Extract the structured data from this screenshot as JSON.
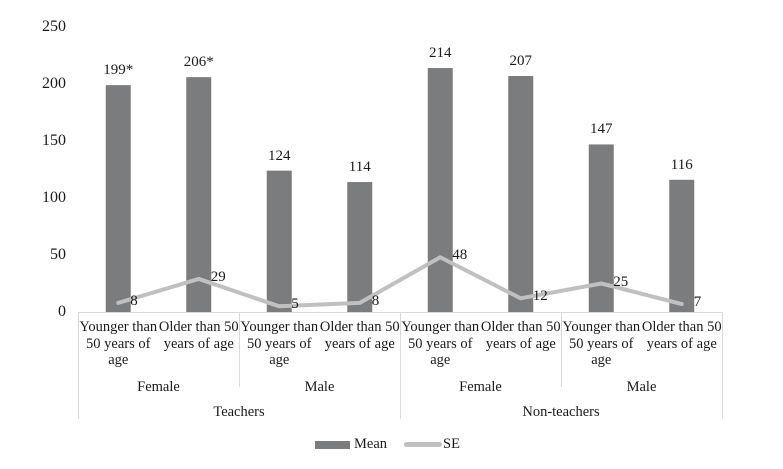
{
  "chart_data": {
    "type": "bar",
    "title": "",
    "xlabel": "",
    "ylabel": "",
    "ylim": [
      0,
      250
    ],
    "yticks": [
      "0",
      "50",
      "100",
      "150",
      "200",
      "250"
    ],
    "grid": false,
    "legend_position": "bottom",
    "categories": [
      "Teachers / Female / Younger than 50 years of age",
      "Teachers / Female / Older than 50 years of age",
      "Teachers / Male / Younger than 50 years of age",
      "Teachers / Male / Older than 50 years of age",
      "Non-teachers / Female / Younger than 50 years of age",
      "Non-teachers / Female / Older than 50 years of age",
      "Non-teachers / Male / Younger than 50 years of age",
      "Non-teachers / Male / Older than 50 years of age"
    ],
    "series": [
      {
        "name": "Mean",
        "type": "bar",
        "color": "#7b7c7e",
        "values": [
          199,
          206,
          124,
          114,
          214,
          207,
          147,
          116
        ],
        "labels": [
          "199*",
          "206*",
          "124",
          "114",
          "214",
          "207",
          "147",
          "116"
        ]
      },
      {
        "name": "SE",
        "type": "line",
        "color": "#c0c0c0",
        "values": [
          8,
          29,
          5,
          8,
          48,
          12,
          25,
          7
        ],
        "labels": [
          "8",
          "29",
          "5",
          "8",
          "48",
          "12",
          "25",
          "7"
        ]
      }
    ]
  },
  "axis": {
    "y_ticks": [
      {
        "label": "250",
        "value": 250
      },
      {
        "label": "200",
        "value": 200
      },
      {
        "label": "150",
        "value": 150
      },
      {
        "label": "100",
        "value": 100
      },
      {
        "label": "50",
        "value": 50
      },
      {
        "label": "0",
        "value": 0
      }
    ],
    "age_labels": [
      "Younger than 50 years of age",
      "Older than 50 years of age",
      "Younger than 50 years of age",
      "Older than 50 years of age",
      "Younger than 50 years of age",
      "Older than 50 years of age",
      "Younger than 50 years of age",
      "Older than 50 years of age"
    ],
    "sex_labels": [
      "Female",
      "Male",
      "Female",
      "Male"
    ],
    "group_labels": [
      "Teachers",
      "Non-teachers"
    ]
  },
  "legend": {
    "mean_label": "Mean",
    "se_label": "SE"
  },
  "colors": {
    "bar": "#7b7c7e",
    "line": "#c0c0c0",
    "axis": "#d9d9d9"
  }
}
